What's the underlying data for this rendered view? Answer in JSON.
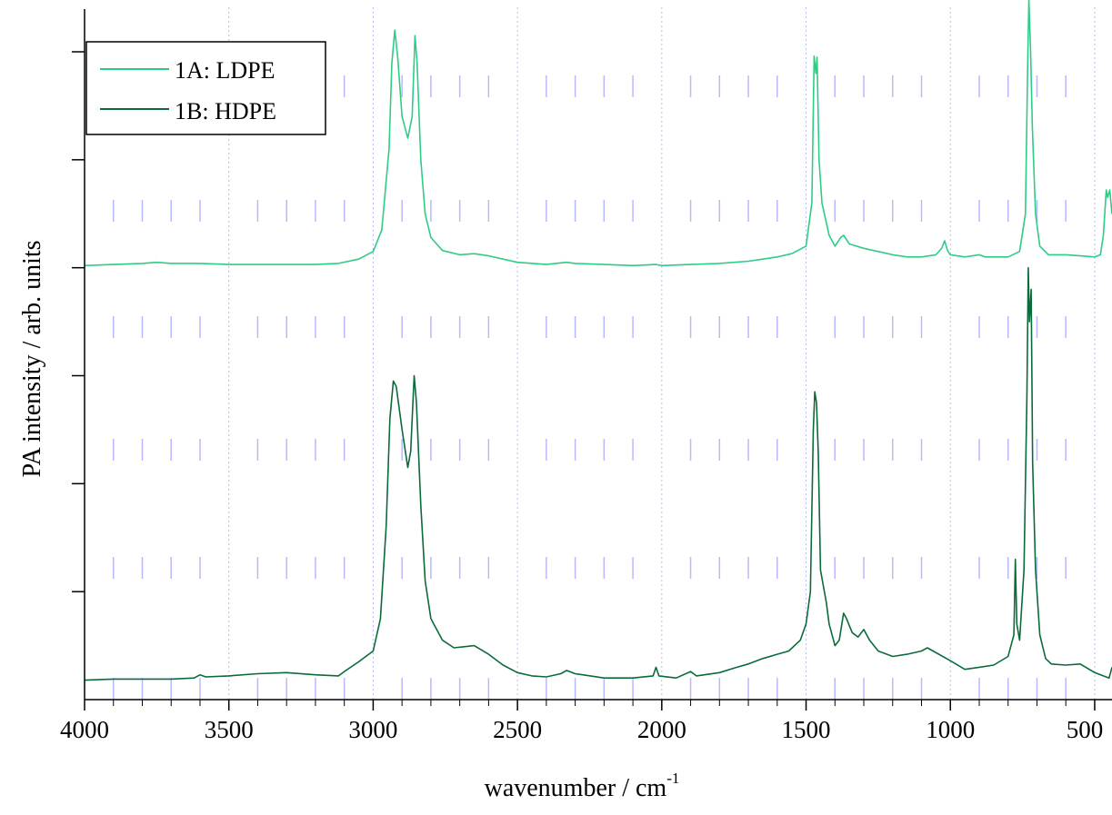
{
  "chart_data": {
    "type": "line",
    "xlabel": "wavenumber / cm",
    "xlabel_superscript": "-1",
    "ylabel": "PA intensity / arb. units",
    "xlim": [
      4000,
      440
    ],
    "ylim": [
      0,
      6
    ],
    "x_reversed": true,
    "x_ticks": [
      4000,
      3500,
      3000,
      2500,
      2000,
      1500,
      1000,
      500
    ],
    "x_tick_labels": [
      "4000",
      "3500",
      "3000",
      "2500",
      "2000",
      "1500",
      "1000",
      "500"
    ],
    "y_ticks": [
      1,
      2,
      3,
      4,
      5,
      6
    ],
    "y_tick_labels_shown": false,
    "grid": "vertical dotted lines at major x ticks",
    "legend_position": "top-left",
    "colors": {
      "ldpe": "#2ecc85",
      "hdpe": "#0b6b3a",
      "grid": "#b8b8ff",
      "axis": "#000000"
    },
    "series": [
      {
        "name": "1A: LDPE",
        "color": "#2ecc85",
        "points": [
          [
            4000,
            4.02
          ],
          [
            3900,
            4.03
          ],
          [
            3800,
            4.04
          ],
          [
            3750,
            4.05
          ],
          [
            3700,
            4.04
          ],
          [
            3600,
            4.04
          ],
          [
            3500,
            4.03
          ],
          [
            3400,
            4.03
          ],
          [
            3300,
            4.03
          ],
          [
            3200,
            4.03
          ],
          [
            3120,
            4.04
          ],
          [
            3050,
            4.08
          ],
          [
            3000,
            4.15
          ],
          [
            2970,
            4.35
          ],
          [
            2945,
            5.1
          ],
          [
            2935,
            5.9
          ],
          [
            2925,
            6.2
          ],
          [
            2915,
            5.95
          ],
          [
            2900,
            5.4
          ],
          [
            2880,
            5.2
          ],
          [
            2865,
            5.4
          ],
          [
            2855,
            6.15
          ],
          [
            2848,
            5.9
          ],
          [
            2835,
            5.0
          ],
          [
            2820,
            4.5
          ],
          [
            2800,
            4.28
          ],
          [
            2760,
            4.16
          ],
          [
            2700,
            4.12
          ],
          [
            2650,
            4.13
          ],
          [
            2600,
            4.11
          ],
          [
            2500,
            4.05
          ],
          [
            2400,
            4.03
          ],
          [
            2330,
            4.05
          ],
          [
            2300,
            4.04
          ],
          [
            2200,
            4.03
          ],
          [
            2100,
            4.02
          ],
          [
            2020,
            4.03
          ],
          [
            2000,
            4.02
          ],
          [
            1900,
            4.03
          ],
          [
            1800,
            4.04
          ],
          [
            1700,
            4.06
          ],
          [
            1650,
            4.08
          ],
          [
            1600,
            4.1
          ],
          [
            1550,
            4.13
          ],
          [
            1500,
            4.2
          ],
          [
            1480,
            4.6
          ],
          [
            1472,
            5.96
          ],
          [
            1466,
            5.8
          ],
          [
            1462,
            5.95
          ],
          [
            1455,
            5.0
          ],
          [
            1445,
            4.6
          ],
          [
            1420,
            4.3
          ],
          [
            1400,
            4.2
          ],
          [
            1380,
            4.28
          ],
          [
            1370,
            4.3
          ],
          [
            1350,
            4.22
          ],
          [
            1300,
            4.18
          ],
          [
            1250,
            4.15
          ],
          [
            1200,
            4.12
          ],
          [
            1150,
            4.1
          ],
          [
            1100,
            4.1
          ],
          [
            1050,
            4.12
          ],
          [
            1030,
            4.18
          ],
          [
            1020,
            4.25
          ],
          [
            1010,
            4.16
          ],
          [
            1000,
            4.12
          ],
          [
            950,
            4.1
          ],
          [
            900,
            4.12
          ],
          [
            880,
            4.1
          ],
          [
            850,
            4.1
          ],
          [
            800,
            4.1
          ],
          [
            760,
            4.15
          ],
          [
            740,
            4.5
          ],
          [
            732,
            5.9
          ],
          [
            728,
            6.48
          ],
          [
            722,
            6.0
          ],
          [
            716,
            5.3
          ],
          [
            705,
            4.5
          ],
          [
            690,
            4.2
          ],
          [
            660,
            4.12
          ],
          [
            600,
            4.12
          ],
          [
            550,
            4.11
          ],
          [
            500,
            4.1
          ],
          [
            480,
            4.12
          ],
          [
            470,
            4.3
          ],
          [
            460,
            4.72
          ],
          [
            455,
            4.65
          ],
          [
            448,
            4.72
          ],
          [
            440,
            4.5
          ]
        ]
      },
      {
        "name": "1B: HDPE",
        "color": "#0b6b3a",
        "points": [
          [
            4000,
            0.18
          ],
          [
            3900,
            0.19
          ],
          [
            3800,
            0.19
          ],
          [
            3700,
            0.19
          ],
          [
            3620,
            0.2
          ],
          [
            3600,
            0.23
          ],
          [
            3580,
            0.21
          ],
          [
            3500,
            0.22
          ],
          [
            3400,
            0.24
          ],
          [
            3300,
            0.25
          ],
          [
            3200,
            0.23
          ],
          [
            3120,
            0.22
          ],
          [
            3100,
            0.26
          ],
          [
            3050,
            0.35
          ],
          [
            3000,
            0.45
          ],
          [
            2975,
            0.75
          ],
          [
            2955,
            1.6
          ],
          [
            2942,
            2.6
          ],
          [
            2930,
            2.95
          ],
          [
            2920,
            2.9
          ],
          [
            2900,
            2.5
          ],
          [
            2880,
            2.15
          ],
          [
            2870,
            2.3
          ],
          [
            2858,
            3.0
          ],
          [
            2850,
            2.75
          ],
          [
            2835,
            1.8
          ],
          [
            2820,
            1.1
          ],
          [
            2800,
            0.75
          ],
          [
            2760,
            0.55
          ],
          [
            2720,
            0.48
          ],
          [
            2650,
            0.5
          ],
          [
            2600,
            0.42
          ],
          [
            2550,
            0.32
          ],
          [
            2500,
            0.25
          ],
          [
            2450,
            0.22
          ],
          [
            2400,
            0.21
          ],
          [
            2350,
            0.24
          ],
          [
            2330,
            0.27
          ],
          [
            2300,
            0.24
          ],
          [
            2200,
            0.2
          ],
          [
            2100,
            0.2
          ],
          [
            2030,
            0.22
          ],
          [
            2020,
            0.3
          ],
          [
            2010,
            0.22
          ],
          [
            1950,
            0.2
          ],
          [
            1900,
            0.26
          ],
          [
            1880,
            0.22
          ],
          [
            1800,
            0.25
          ],
          [
            1740,
            0.3
          ],
          [
            1700,
            0.33
          ],
          [
            1650,
            0.38
          ],
          [
            1600,
            0.42
          ],
          [
            1560,
            0.45
          ],
          [
            1520,
            0.55
          ],
          [
            1500,
            0.7
          ],
          [
            1485,
            1.0
          ],
          [
            1475,
            2.5
          ],
          [
            1470,
            2.85
          ],
          [
            1464,
            2.75
          ],
          [
            1458,
            2.3
          ],
          [
            1450,
            1.2
          ],
          [
            1440,
            1.05
          ],
          [
            1430,
            0.9
          ],
          [
            1420,
            0.7
          ],
          [
            1400,
            0.5
          ],
          [
            1385,
            0.55
          ],
          [
            1370,
            0.8
          ],
          [
            1360,
            0.75
          ],
          [
            1340,
            0.62
          ],
          [
            1320,
            0.58
          ],
          [
            1300,
            0.65
          ],
          [
            1280,
            0.55
          ],
          [
            1250,
            0.45
          ],
          [
            1200,
            0.4
          ],
          [
            1150,
            0.42
          ],
          [
            1100,
            0.45
          ],
          [
            1080,
            0.48
          ],
          [
            1060,
            0.45
          ],
          [
            1000,
            0.36
          ],
          [
            950,
            0.28
          ],
          [
            900,
            0.3
          ],
          [
            850,
            0.32
          ],
          [
            800,
            0.4
          ],
          [
            780,
            0.6
          ],
          [
            775,
            1.3
          ],
          [
            770,
            0.7
          ],
          [
            760,
            0.55
          ],
          [
            745,
            1.2
          ],
          [
            735,
            2.8
          ],
          [
            730,
            4.0
          ],
          [
            726,
            3.5
          ],
          [
            720,
            3.8
          ],
          [
            715,
            2.2
          ],
          [
            705,
            1.2
          ],
          [
            690,
            0.6
          ],
          [
            670,
            0.38
          ],
          [
            650,
            0.33
          ],
          [
            600,
            0.32
          ],
          [
            550,
            0.33
          ],
          [
            500,
            0.25
          ],
          [
            470,
            0.22
          ],
          [
            450,
            0.2
          ],
          [
            440,
            0.3
          ]
        ]
      }
    ]
  }
}
